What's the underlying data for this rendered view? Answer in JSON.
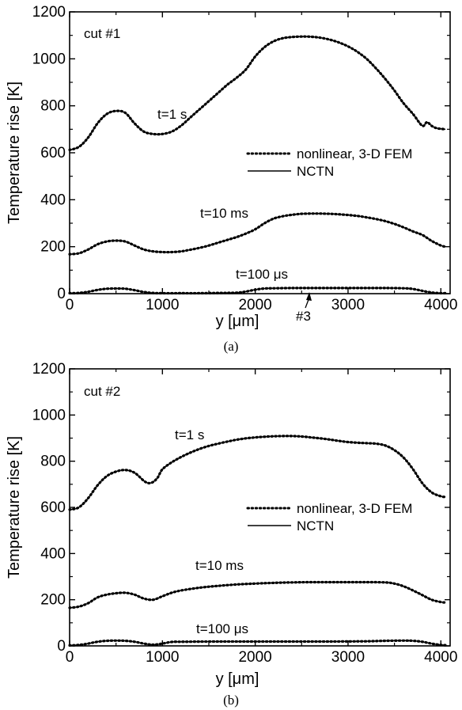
{
  "chart_data": [
    {
      "type": "line",
      "panel_label": "cut #1",
      "caption": "(a)",
      "xlabel": "y [μm]",
      "ylabel": "Temperature rise [K]",
      "xlim": [
        0,
        4100
      ],
      "ylim": [
        0,
        1200
      ],
      "xticks": [
        0,
        1000,
        2000,
        3000,
        4000
      ],
      "yticks": [
        0,
        200,
        400,
        600,
        800,
        1000,
        1200
      ],
      "legend": {
        "position": "right-middle",
        "entries": [
          {
            "label": "nonlinear, 3-D FEM",
            "style": "dotted"
          },
          {
            "label": "NCTN",
            "style": "solid"
          }
        ]
      },
      "marker_annotation": {
        "label": "#3",
        "x": 2560,
        "y": 0
      },
      "series": [
        {
          "curve_label": "t=1 s",
          "x": [
            0,
            100,
            200,
            300,
            400,
            500,
            600,
            700,
            800,
            900,
            1000,
            1100,
            1200,
            1300,
            1400,
            1500,
            1600,
            1700,
            1800,
            1900,
            2000,
            2100,
            2200,
            2300,
            2400,
            2500,
            2600,
            2700,
            2800,
            2900,
            3000,
            3100,
            3200,
            3300,
            3400,
            3500,
            3600,
            3700,
            3800,
            3850,
            3900,
            3950,
            4000,
            4050
          ],
          "y": [
            612,
            625,
            665,
            725,
            765,
            778,
            770,
            725,
            690,
            680,
            680,
            690,
            715,
            750,
            785,
            820,
            855,
            890,
            920,
            955,
            1010,
            1050,
            1075,
            1088,
            1093,
            1095,
            1094,
            1090,
            1082,
            1070,
            1053,
            1030,
            1000,
            960,
            915,
            865,
            810,
            765,
            715,
            730,
            715,
            705,
            702,
            700
          ]
        },
        {
          "curve_label": "t=10 ms",
          "x": [
            0,
            100,
            200,
            300,
            400,
            500,
            600,
            700,
            800,
            900,
            1000,
            1100,
            1200,
            1300,
            1400,
            1500,
            1600,
            1700,
            1800,
            1900,
            2000,
            2100,
            2200,
            2300,
            2400,
            2500,
            2600,
            2700,
            2800,
            2900,
            3000,
            3100,
            3200,
            3300,
            3400,
            3500,
            3600,
            3700,
            3800,
            3900,
            4000,
            4050
          ],
          "y": [
            168,
            172,
            188,
            210,
            222,
            226,
            222,
            205,
            188,
            180,
            177,
            177,
            180,
            187,
            195,
            205,
            217,
            229,
            241,
            256,
            274,
            300,
            320,
            330,
            336,
            340,
            341,
            341,
            340,
            338,
            335,
            331,
            325,
            318,
            309,
            297,
            282,
            265,
            250,
            225,
            205,
            200
          ]
        },
        {
          "curve_label": "t=100 μs",
          "x": [
            0,
            100,
            200,
            300,
            400,
            500,
            600,
            700,
            800,
            900,
            1000,
            1200,
            1400,
            1600,
            1800,
            1900,
            2000,
            2100,
            2200,
            2400,
            2600,
            2800,
            3000,
            3200,
            3400,
            3600,
            3700,
            3800,
            3900,
            4000,
            4050
          ],
          "y": [
            2,
            3,
            8,
            16,
            21,
            22,
            21,
            15,
            7,
            3,
            2,
            2,
            2,
            3,
            4,
            9,
            17,
            22,
            23,
            24,
            24,
            24,
            24,
            24,
            24,
            23,
            20,
            12,
            5,
            2,
            2
          ]
        }
      ]
    },
    {
      "type": "line",
      "panel_label": "cut #2",
      "caption": "(b)",
      "xlabel": "y [μm]",
      "ylabel": "Temperature rise [K]",
      "xlim": [
        0,
        4100
      ],
      "ylim": [
        0,
        1200
      ],
      "xticks": [
        0,
        1000,
        2000,
        3000,
        4000
      ],
      "yticks": [
        0,
        200,
        400,
        600,
        800,
        1000,
        1200
      ],
      "legend": {
        "position": "right-middle",
        "entries": [
          {
            "label": "nonlinear, 3-D FEM",
            "style": "dotted"
          },
          {
            "label": "NCTN",
            "style": "solid"
          }
        ]
      },
      "series": [
        {
          "curve_label": "t=1 s",
          "x": [
            0,
            100,
            200,
            300,
            400,
            500,
            600,
            700,
            800,
            850,
            900,
            950,
            1000,
            1100,
            1200,
            1300,
            1400,
            1500,
            1600,
            1700,
            1800,
            1900,
            2000,
            2100,
            2200,
            2300,
            2400,
            2500,
            2600,
            2700,
            2800,
            2900,
            3000,
            3100,
            3200,
            3300,
            3400,
            3500,
            3600,
            3700,
            3800,
            3900,
            4000,
            4050
          ],
          "y": [
            590,
            600,
            640,
            695,
            735,
            755,
            762,
            750,
            715,
            705,
            710,
            730,
            765,
            795,
            818,
            837,
            853,
            866,
            876,
            885,
            893,
            899,
            903,
            906,
            908,
            909,
            909,
            907,
            903,
            899,
            894,
            888,
            883,
            880,
            878,
            876,
            868,
            848,
            815,
            765,
            705,
            665,
            648,
            645
          ]
        },
        {
          "curve_label": "t=10 ms",
          "x": [
            0,
            100,
            200,
            300,
            400,
            500,
            600,
            700,
            800,
            900,
            1000,
            1100,
            1200,
            1400,
            1600,
            1800,
            2000,
            2200,
            2400,
            2600,
            2800,
            3000,
            3200,
            3400,
            3500,
            3600,
            3700,
            3800,
            3900,
            4000,
            4050
          ],
          "y": [
            165,
            170,
            185,
            210,
            222,
            228,
            230,
            222,
            205,
            200,
            215,
            230,
            240,
            252,
            260,
            266,
            270,
            273,
            275,
            276,
            276,
            276,
            276,
            275,
            270,
            258,
            240,
            220,
            200,
            190,
            188
          ]
        },
        {
          "curve_label": "t=100 μs",
          "x": [
            0,
            100,
            200,
            300,
            400,
            500,
            600,
            700,
            800,
            900,
            1000,
            1100,
            1200,
            1600,
            2000,
            2400,
            2800,
            3200,
            3400,
            3600,
            3700,
            3800,
            3900,
            4000,
            4050
          ],
          "y": [
            2,
            4,
            10,
            18,
            22,
            23,
            22,
            18,
            10,
            5,
            10,
            17,
            18,
            19,
            19,
            19,
            19,
            20,
            22,
            23,
            22,
            18,
            10,
            4,
            3
          ]
        }
      ]
    }
  ]
}
